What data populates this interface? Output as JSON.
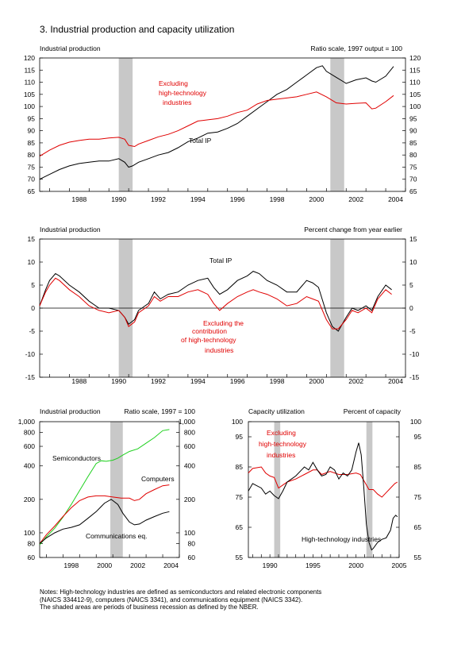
{
  "page_title": "3.  Industrial production and capacity utilization",
  "notes": [
    "Notes:  High-technology industries are defined as semiconductors and related electronic components",
    "(NAICS 334412-9), computers (NAICS 3341), and communications equipment (NAICS 3342).",
    "The shaded areas are periods of business recession as defined by the NBER."
  ],
  "colors": {
    "black": "#000000",
    "red": "#e00000",
    "green": "#1ed01e",
    "recession": "#c8c8c8"
  },
  "chart_data": [
    {
      "id": "ip-levels",
      "type": "line",
      "left_label": "Industrial production",
      "right_label": "Ratio scale, 1997 output = 100",
      "y_ticks": [
        120,
        115,
        110,
        105,
        100,
        95,
        90,
        85,
        80,
        75,
        70,
        65
      ],
      "x_ticks": [
        "1988",
        "1990",
        "1992",
        "1994",
        "1996",
        "1998",
        "2000",
        "2002",
        "2004"
      ],
      "xlim": [
        1986.5,
        2005.0
      ],
      "ylim": [
        65,
        120
      ],
      "recessions": [
        [
          1990.5,
          1991.2
        ],
        [
          2001.2,
          2001.9
        ]
      ],
      "series": [
        {
          "name": "Total IP",
          "color": "black",
          "x": [
            1986.5,
            1987,
            1987.5,
            1988,
            1988.5,
            1989,
            1989.5,
            1990,
            1990.5,
            1990.8,
            1991,
            1991.2,
            1991.5,
            1992,
            1992.5,
            1993,
            1993.5,
            1994,
            1994.5,
            1995,
            1995.5,
            1996,
            1996.5,
            1997,
            1997.5,
            1998,
            1998.5,
            1999,
            1999.5,
            2000,
            2000.5,
            2000.8,
            2001,
            2001.5,
            2001.9,
            2002,
            2002.5,
            2003,
            2003.3,
            2003.5,
            2004,
            2004.4
          ],
          "y": [
            70,
            72,
            74,
            75.5,
            76.5,
            77,
            77.5,
            77.5,
            78.5,
            77,
            75,
            75.5,
            77,
            78.5,
            80,
            81,
            83,
            85.5,
            87,
            89,
            89.5,
            91,
            93,
            96,
            99,
            102,
            105,
            107,
            110,
            113,
            116,
            116.8,
            114.5,
            112,
            110,
            109.5,
            111,
            111.8,
            110.5,
            110,
            112.5,
            116.5
          ]
        },
        {
          "name": "Excluding high-technology industries",
          "color": "red",
          "x": [
            1986.5,
            1987,
            1987.5,
            1988,
            1988.5,
            1989,
            1989.5,
            1990,
            1990.5,
            1990.8,
            1991,
            1991.3,
            1991.5,
            1992,
            1992.5,
            1993,
            1993.5,
            1994,
            1994.5,
            1995,
            1995.5,
            1996,
            1996.5,
            1997,
            1997.5,
            1998,
            1998.5,
            1999,
            1999.5,
            2000,
            2000.5,
            2001,
            2001.5,
            2002,
            2002.5,
            2003,
            2003.3,
            2003.5,
            2004,
            2004.4
          ],
          "y": [
            79.5,
            82,
            84,
            85.3,
            86,
            86.5,
            86.5,
            87,
            87.3,
            86.5,
            84,
            83.5,
            84.5,
            86,
            87.5,
            88.5,
            90,
            92,
            94,
            94.5,
            95,
            96,
            97.5,
            98.5,
            101,
            102.5,
            103,
            103.5,
            104,
            105,
            106,
            104,
            101.5,
            101,
            101.3,
            101.5,
            99,
            99.3,
            102,
            104.5
          ]
        }
      ],
      "annotations": [
        {
          "text": "Excluding",
          "color": "red"
        },
        {
          "text": "high-technology",
          "color": "red"
        },
        {
          "text": "industries",
          "color": "red"
        },
        {
          "text": "Total IP",
          "color": "black"
        }
      ]
    },
    {
      "id": "ip-change",
      "type": "line",
      "left_label": "Industrial production",
      "right_label": "Percent change from year earlier",
      "y_ticks": [
        15,
        10,
        5,
        0,
        -5,
        -10,
        -15
      ],
      "x_ticks": [
        "1988",
        "1990",
        "1992",
        "1994",
        "1996",
        "1998",
        "2000",
        "2002",
        "2004"
      ],
      "xlim": [
        1986.5,
        2005.0
      ],
      "ylim": [
        -15,
        15
      ],
      "recessions": [
        [
          1990.5,
          1991.2
        ],
        [
          2001.2,
          2001.9
        ]
      ],
      "series": [
        {
          "name": "Total IP",
          "color": "black",
          "x": [
            1986.5,
            1986.8,
            1987,
            1987.3,
            1987.5,
            1988,
            1988.5,
            1989,
            1989.5,
            1990,
            1990.5,
            1990.8,
            1991,
            1991.3,
            1991.5,
            1992,
            1992.3,
            1992.6,
            1993,
            1993.5,
            1994,
            1994.5,
            1995,
            1995.3,
            1995.6,
            1996,
            1996.5,
            1997,
            1997.3,
            1997.6,
            1998,
            1998.5,
            1999,
            1999.5,
            2000,
            2000.3,
            2000.6,
            2001,
            2001.3,
            2001.6,
            2002,
            2002.3,
            2002.6,
            2003,
            2003.3,
            2003.6,
            2004,
            2004.3
          ],
          "y": [
            0.5,
            4,
            6,
            7.5,
            7,
            5,
            3.5,
            1.5,
            0,
            0,
            -0.5,
            -2,
            -3.5,
            -2.5,
            -0.5,
            1,
            3.5,
            2,
            3,
            3.5,
            5,
            6,
            6.5,
            4.5,
            3,
            4,
            6,
            7,
            8,
            7.5,
            6,
            5,
            3.5,
            3.5,
            6,
            5.5,
            4.5,
            -1,
            -4,
            -5,
            -2,
            0,
            -0.5,
            0.5,
            -0.5,
            2.5,
            5,
            4
          ]
        },
        {
          "name": "Excluding the contribution of high-technology industries",
          "color": "red",
          "x": [
            1986.5,
            1986.8,
            1987,
            1987.3,
            1987.5,
            1988,
            1988.5,
            1989,
            1989.5,
            1990,
            1990.5,
            1990.8,
            1991,
            1991.3,
            1991.5,
            1992,
            1992.3,
            1992.6,
            1993,
            1993.5,
            1994,
            1994.5,
            1995,
            1995.3,
            1995.6,
            1996,
            1996.5,
            1997,
            1997.3,
            1997.6,
            1998,
            1998.5,
            1999,
            1999.5,
            2000,
            2000.3,
            2000.6,
            2001,
            2001.3,
            2001.6,
            2002,
            2002.3,
            2002.6,
            2003,
            2003.3,
            2003.6,
            2004,
            2004.3
          ],
          "y": [
            0.5,
            3.5,
            5,
            6.5,
            6,
            4,
            2.5,
            0.5,
            -0.5,
            -1,
            -0.5,
            -2,
            -4,
            -3,
            -1,
            0.5,
            2.5,
            1.5,
            2.5,
            2.5,
            3.5,
            4,
            3,
            1,
            -0.5,
            1,
            2.5,
            3.5,
            4,
            3.5,
            3,
            2,
            0.5,
            1,
            2.5,
            2,
            1.5,
            -2.5,
            -4.5,
            -4.5,
            -2.5,
            -0.5,
            -1,
            0,
            -1,
            2,
            4,
            3
          ]
        }
      ],
      "annotations": [
        {
          "text": "Total IP",
          "color": "black"
        },
        {
          "text": "Excluding the",
          "color": "red"
        },
        {
          "text": "contribution",
          "color": "red"
        },
        {
          "text": "of high-technology",
          "color": "red"
        },
        {
          "text": "industries",
          "color": "red"
        }
      ]
    },
    {
      "id": "high-tech",
      "type": "line",
      "scale": "log",
      "left_label": "Industrial production",
      "right_label": "Ratio scale, 1997 = 100",
      "y_ticks": [
        "1,000",
        "800",
        "600",
        "400",
        "200",
        "100",
        "80",
        "60"
      ],
      "y_tick_values": [
        1000,
        800,
        600,
        400,
        200,
        100,
        80,
        60
      ],
      "y_ticks_right": [
        "1,000",
        "800",
        "600",
        "400",
        "200",
        "100",
        "80",
        "60"
      ],
      "x_ticks": [
        "1998",
        "2000",
        "2002",
        "2004"
      ],
      "xlim": [
        1996.6,
        2005.0
      ],
      "ylim": [
        60,
        1000
      ],
      "recessions": [
        [
          2000.85,
          2001.6
        ]
      ],
      "series": [
        {
          "name": "Semiconductors",
          "color": "green",
          "x": [
            1996.6,
            1997,
            1997.5,
            1998,
            1998.5,
            1999,
            1999.5,
            2000,
            2000.3,
            2000.6,
            2001,
            2001.3,
            2001.6,
            2002,
            2002.5,
            2003,
            2003.5,
            2004,
            2004.4
          ],
          "y": [
            78,
            92,
            110,
            138,
            180,
            240,
            320,
            420,
            445,
            440,
            450,
            470,
            500,
            540,
            570,
            640,
            720,
            830,
            850
          ]
        },
        {
          "name": "Computers",
          "color": "red",
          "x": [
            1996.6,
            1997,
            1997.5,
            1998,
            1998.5,
            1999,
            1999.5,
            2000,
            2000.5,
            2001,
            2001.5,
            2002,
            2002.3,
            2002.6,
            2003,
            2003.5,
            2004,
            2004.4
          ],
          "y": [
            80,
            96,
            115,
            140,
            168,
            195,
            210,
            215,
            215,
            210,
            205,
            205,
            195,
            200,
            225,
            245,
            265,
            270
          ]
        },
        {
          "name": "Communications eq.",
          "color": "black",
          "x": [
            1996.6,
            1997,
            1997.5,
            1998,
            1998.5,
            1999,
            1999.5,
            2000,
            2000.5,
            2000.9,
            2001,
            2001.3,
            2001.6,
            2002,
            2002.3,
            2002.6,
            2003,
            2003.5,
            2004,
            2004.4
          ],
          "y": [
            80,
            90,
            100,
            108,
            112,
            118,
            135,
            155,
            185,
            200,
            195,
            180,
            150,
            125,
            118,
            120,
            130,
            140,
            150,
            155
          ]
        }
      ]
    },
    {
      "id": "capacity-utilization",
      "type": "line",
      "left_label": "Capacity utilization",
      "right_label": "Percent of capacity",
      "y_ticks": [
        100,
        95,
        85,
        75,
        65,
        55
      ],
      "x_ticks": [
        "1990",
        "1995",
        "2000",
        "2005"
      ],
      "xlim": [
        1987.5,
        2005.0
      ],
      "ylim": [
        55,
        100
      ],
      "recessions": [
        [
          1990.5,
          1991.2
        ],
        [
          2001.2,
          2001.9
        ]
      ],
      "series": [
        {
          "name": "Excluding high-technology industries",
          "color": "red",
          "x": [
            1987.5,
            1988,
            1989,
            1989.5,
            1990,
            1990.5,
            1991,
            1991.5,
            1992,
            1993,
            1994,
            1995,
            1995.5,
            1996,
            1997,
            1998,
            1999,
            2000,
            2000.5,
            2001,
            2001.5,
            2002,
            2002.5,
            2003,
            2003.5,
            2004,
            2004.5,
            2004.8
          ],
          "y": [
            83,
            84.5,
            85,
            83,
            82,
            81.5,
            78,
            79,
            80,
            81,
            82.5,
            84,
            84,
            82.5,
            83.5,
            82.5,
            82.5,
            83,
            82.5,
            80,
            77.5,
            77.5,
            76,
            75,
            76.5,
            78,
            79.5,
            80
          ]
        },
        {
          "name": "High-technology industries",
          "color": "black",
          "x": [
            1987.5,
            1988,
            1989,
            1989.5,
            1990,
            1990.5,
            1991,
            1991.5,
            1992,
            1992.5,
            1993,
            1994,
            1994.5,
            1995,
            1995.5,
            1996,
            1996.5,
            1997,
            1997.5,
            1998,
            1998.5,
            1999,
            1999.5,
            2000,
            2000.3,
            2000.6,
            2000.9,
            2001.2,
            2001.5,
            2001.8,
            2002,
            2002.5,
            2003,
            2003.5,
            2004,
            2004.3,
            2004.6,
            2004.8
          ],
          "y": [
            77,
            79.5,
            78,
            76,
            77,
            75.5,
            74.5,
            77,
            80,
            81,
            82,
            85,
            84,
            86.5,
            84,
            82,
            82.5,
            85,
            84,
            81,
            83,
            82,
            84,
            90,
            93,
            89,
            78,
            66,
            60,
            57.5,
            58,
            60,
            61,
            61.5,
            64,
            68,
            69,
            68.5
          ]
        }
      ],
      "annotations": [
        {
          "text": "Excluding",
          "color": "red"
        },
        {
          "text": "high-technology",
          "color": "red"
        },
        {
          "text": "industries",
          "color": "red"
        },
        {
          "text": "High-technology industries",
          "color": "black"
        }
      ]
    }
  ]
}
